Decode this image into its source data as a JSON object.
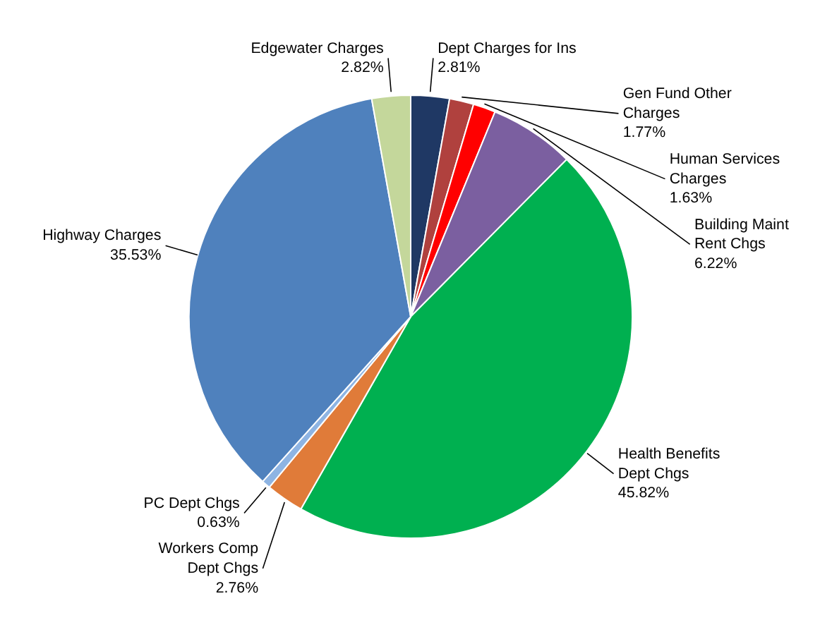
{
  "chart_data": {
    "type": "pie",
    "categories": [
      "Dept Charges for Ins",
      "Gen Fund Other Charges",
      "Human Services Charges",
      "Building Maint Rent Chgs",
      "Health Benefits Dept Chgs",
      "Workers Comp Dept Chgs",
      "PC Dept Chgs",
      "Highway Charges",
      "Edgewater Charges"
    ],
    "values": [
      2.81,
      1.77,
      1.63,
      6.22,
      45.82,
      2.76,
      0.63,
      35.53,
      2.82
    ],
    "value_labels": [
      "2.81%",
      "1.77%",
      "1.63%",
      "6.22%",
      "45.82%",
      "2.76%",
      "0.63%",
      "35.53%",
      "2.82%"
    ],
    "colors": [
      "#1f3864",
      "#b0413e",
      "#ff0000",
      "#7b5fa0",
      "#00b050",
      "#e07b39",
      "#8eb4e3",
      "#4f81bd",
      "#c4d79b"
    ]
  }
}
